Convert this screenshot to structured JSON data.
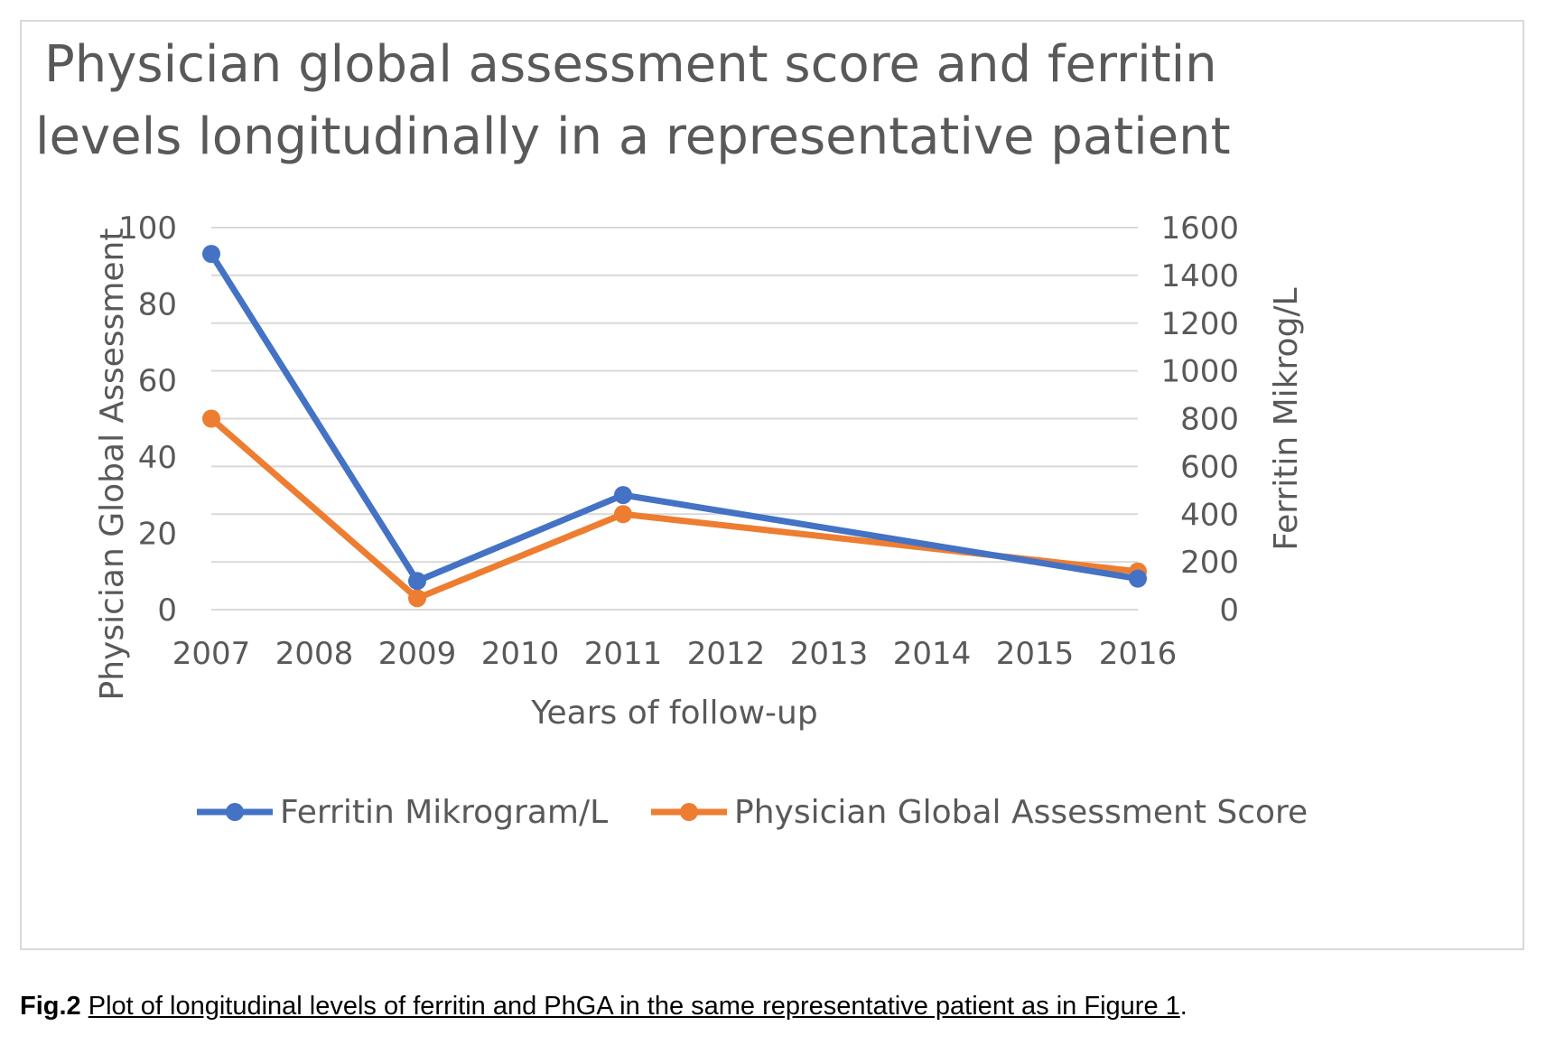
{
  "chart_data": {
    "type": "line",
    "title_lines": [
      "Physician global assessment  score and ferritin",
      "levels longitudinally in a representative patient"
    ],
    "xlabel": "Years of follow-up",
    "ylabel_left": "Physician Global Assessment",
    "ylabel_right": "Ferritin Mikrog/L",
    "x_categories": [
      "2007",
      "2008",
      "2009",
      "2010",
      "2011",
      "2012",
      "2013",
      "2014",
      "2015",
      "2016"
    ],
    "left_axis": {
      "ylim": [
        0,
        100
      ],
      "ticks": [
        "100",
        "80",
        "60",
        "40",
        "20",
        "0"
      ]
    },
    "right_axis": {
      "ylim": [
        0,
        1600
      ],
      "ticks": [
        "1600",
        "1400",
        "1200",
        "1000",
        "800",
        "600",
        "400",
        "200",
        "0"
      ]
    },
    "grid": true,
    "legend_position": "bottom",
    "series": [
      {
        "name": "Ferritin Mikrogram/L",
        "axis": "right",
        "color": "#4472c4",
        "points": [
          {
            "x": "2007",
            "y": 1490
          },
          {
            "x": "2009",
            "y": 120
          },
          {
            "x": "2011",
            "y": 480
          },
          {
            "x": "2016",
            "y": 130
          }
        ]
      },
      {
        "name": "Physician Global Assessment Score",
        "axis": "left",
        "color": "#ed7d31",
        "points": [
          {
            "x": "2007",
            "y": 50
          },
          {
            "x": "2009",
            "y": 3
          },
          {
            "x": "2011",
            "y": 25
          },
          {
            "x": "2016",
            "y": 10
          }
        ]
      }
    ]
  },
  "caption": {
    "fig_label": "Fig.2",
    "text": "Plot of longitudinal levels of ferritin and PhGA in the same representative patient as in Figure 1",
    "end": "."
  }
}
